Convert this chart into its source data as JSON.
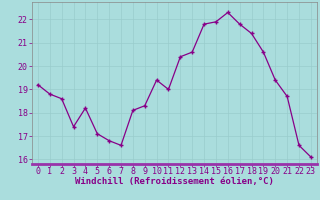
{
  "x": [
    0,
    1,
    2,
    3,
    4,
    5,
    6,
    7,
    8,
    9,
    10,
    11,
    12,
    13,
    14,
    15,
    16,
    17,
    18,
    19,
    20,
    21,
    22,
    23
  ],
  "y": [
    19.2,
    18.8,
    18.6,
    17.4,
    18.2,
    17.1,
    16.8,
    16.6,
    18.1,
    18.3,
    19.4,
    19.0,
    20.4,
    20.6,
    21.8,
    21.9,
    22.3,
    21.8,
    21.4,
    20.6,
    19.4,
    18.7,
    16.6,
    16.1
  ],
  "xlim": [
    -0.5,
    23.5
  ],
  "ylim": [
    15.8,
    22.75
  ],
  "yticks": [
    16,
    17,
    18,
    19,
    20,
    21,
    22
  ],
  "xticks": [
    0,
    1,
    2,
    3,
    4,
    5,
    6,
    7,
    8,
    9,
    10,
    11,
    12,
    13,
    14,
    15,
    16,
    17,
    18,
    19,
    20,
    21,
    22,
    23
  ],
  "xlabel": "Windchill (Refroidissement éolien,°C)",
  "line_color": "#880088",
  "marker": "+",
  "bg_color": "#aadddd",
  "plot_bg_color": "#aadddd",
  "grid_color": "#99cccc",
  "axis_bar_color": "#9933aa",
  "tick_label_color": "#880088",
  "xlabel_color": "#880088",
  "font_size_xlabel": 6.5,
  "font_size_ticks": 6,
  "spine_color": "#888888"
}
